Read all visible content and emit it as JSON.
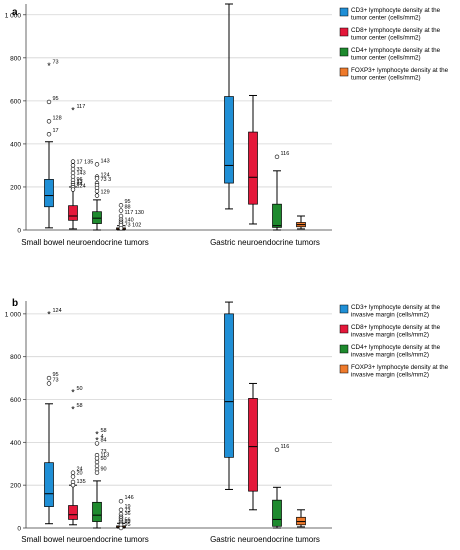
{
  "chart_data": [
    {
      "type": "box",
      "panel_label": "a",
      "categories": [
        "Small bowel neuroendocrine tumors",
        "Gastric neuroendocrine tumors"
      ],
      "ylim": [
        0,
        1050
      ],
      "yticks": [
        0,
        200,
        400,
        600,
        800,
        1000
      ],
      "ytick_labels": [
        "0",
        "200",
        "400",
        "600",
        "800",
        "1 000"
      ],
      "grid": true,
      "legend_position": "right",
      "series": [
        {
          "name": "CD3+ lymphocyte density at the tumor center (cells/mm2)",
          "color": "#1f8fd6",
          "boxes": [
            {
              "min": 10,
              "q1": 108,
              "median": 160,
              "q3": 235,
              "max": 410,
              "outliers": [
                {
                  "value": 765,
                  "label": "73",
                  "marker": "star"
                },
                {
                  "value": 595,
                  "label": "95",
                  "marker": "circle"
                },
                {
                  "value": 505,
                  "label": "128",
                  "marker": "circle"
                },
                {
                  "value": 445,
                  "label": "17",
                  "marker": "circle"
                }
              ]
            },
            {
              "min": 98,
              "q1": 218,
              "median": 300,
              "q3": 620,
              "max": 1050,
              "outliers": []
            }
          ]
        },
        {
          "name": "CD8+ lymphocyte density at the tumor center (cells/mm2)",
          "color": "#e4183a",
          "boxes": [
            {
              "min": 5,
              "q1": 45,
              "median": 65,
              "q3": 113,
              "max": 200,
              "outliers": [
                {
                  "value": 558,
                  "label": "117",
                  "marker": "star"
                },
                {
                  "value": 318,
                  "label": "",
                  "marker": "circle"
                },
                {
                  "value": 300,
                  "label": "17 135",
                  "marker": "circle"
                },
                {
                  "value": 283,
                  "label": "",
                  "marker": "circle"
                },
                {
                  "value": 265,
                  "label": "33",
                  "marker": "circle"
                },
                {
                  "value": 248,
                  "label": "143",
                  "marker": "circle"
                },
                {
                  "value": 232,
                  "label": "",
                  "marker": "circle"
                },
                {
                  "value": 218,
                  "label": "96",
                  "marker": "circle"
                },
                {
                  "value": 208,
                  "label": "13",
                  "marker": "circle"
                },
                {
                  "value": 198,
                  "label": "84",
                  "marker": "circle"
                },
                {
                  "value": 188,
                  "label": "124",
                  "marker": "circle"
                }
              ]
            },
            {
              "min": 28,
              "q1": 120,
              "median": 245,
              "q3": 455,
              "max": 625,
              "outliers": []
            }
          ]
        },
        {
          "name": "CD4+ lymphocyte density at the tumor center (cells/mm2)",
          "color": "#1e8a2e",
          "boxes": [
            {
              "min": 0,
              "q1": 30,
              "median": 55,
              "q3": 85,
              "max": 140,
              "outliers": [
                {
                  "value": 305,
                  "label": "143",
                  "marker": "circle"
                },
                {
                  "value": 248,
                  "label": "",
                  "marker": "circle"
                },
                {
                  "value": 240,
                  "label": "124",
                  "marker": "circle"
                },
                {
                  "value": 218,
                  "label": "73 3",
                  "marker": "circle"
                },
                {
                  "value": 208,
                  "label": "",
                  "marker": "circle"
                },
                {
                  "value": 195,
                  "label": "",
                  "marker": "circle"
                },
                {
                  "value": 180,
                  "label": "",
                  "marker": "circle"
                },
                {
                  "value": 160,
                  "label": "129",
                  "marker": "circle"
                }
              ]
            },
            {
              "min": 0,
              "q1": 12,
              "median": 20,
              "q3": 120,
              "max": 275,
              "outliers": [
                {
                  "value": 340,
                  "label": "116",
                  "marker": "circle"
                }
              ]
            }
          ]
        },
        {
          "name": "FOXP3+ lymphocyte density at the tumor center (cells/mm2)",
          "color": "#ee7a2c",
          "boxes": [
            {
              "min": 0,
              "q1": 2,
              "median": 5,
              "q3": 10,
              "max": 20,
              "outliers": [
                {
                  "value": 115,
                  "label": "95",
                  "marker": "circle"
                },
                {
                  "value": 90,
                  "label": "88",
                  "marker": "circle"
                },
                {
                  "value": 65,
                  "label": "117 130",
                  "marker": "circle"
                },
                {
                  "value": 48,
                  "label": "",
                  "marker": "circle"
                },
                {
                  "value": 38,
                  "label": "",
                  "marker": "circle"
                },
                {
                  "value": 30,
                  "label": "140",
                  "marker": "circle"
                },
                {
                  "value": 22,
                  "label": "",
                  "marker": "circle"
                },
                {
                  "value": 8,
                  "label": "73 102",
                  "marker": "circle"
                }
              ]
            },
            {
              "min": 5,
              "q1": 15,
              "median": 25,
              "q3": 35,
              "max": 65,
              "outliers": []
            }
          ]
        }
      ]
    },
    {
      "type": "box",
      "panel_label": "b",
      "categories": [
        "Small bowel neuroendocrine tumors",
        "Gastric neuroendocrine tumors"
      ],
      "ylim": [
        0,
        1060
      ],
      "yticks": [
        0,
        200,
        400,
        600,
        800,
        1000
      ],
      "ytick_labels": [
        "0",
        "200",
        "400",
        "600",
        "800",
        "1 000"
      ],
      "grid": true,
      "legend_position": "right",
      "series": [
        {
          "name": "CD3+ lymphocyte density at the invasive margin (cells/mm2)",
          "color": "#1f8fd6",
          "boxes": [
            {
              "min": 20,
              "q1": 100,
              "median": 160,
              "q3": 305,
              "max": 580,
              "outliers": [
                {
                  "value": 1000,
                  "label": "124",
                  "marker": "star"
                },
                {
                  "value": 700,
                  "label": "95",
                  "marker": "circle"
                },
                {
                  "value": 675,
                  "label": "73",
                  "marker": "circle"
                }
              ]
            },
            {
              "min": 180,
              "q1": 330,
              "median": 590,
              "q3": 1000,
              "max": 1055,
              "outliers": []
            }
          ]
        },
        {
          "name": "CD8+ lymphocyte density at the invasive margin (cells/mm2)",
          "color": "#e4183a",
          "boxes": [
            {
              "min": 15,
              "q1": 40,
              "median": 62,
              "q3": 105,
              "max": 200,
              "outliers": [
                {
                  "value": 635,
                  "label": "50",
                  "marker": "star"
                },
                {
                  "value": 555,
                  "label": "58",
                  "marker": "star"
                },
                {
                  "value": 258,
                  "label": "24",
                  "marker": "circle"
                },
                {
                  "value": 240,
                  "label": "20",
                  "marker": "circle"
                },
                {
                  "value": 215,
                  "label": "",
                  "marker": "circle"
                },
                {
                  "value": 200,
                  "label": "135",
                  "marker": "circle"
                }
              ]
            },
            {
              "min": 85,
              "q1": 172,
              "median": 380,
              "q3": 605,
              "max": 675,
              "outliers": []
            }
          ]
        },
        {
          "name": "CD4+ lymphocyte density at the invasive margin (cells/mm2)",
          "color": "#1e8a2e",
          "boxes": [
            {
              "min": 0,
              "q1": 30,
              "median": 60,
              "q3": 120,
              "max": 220,
              "outliers": [
                {
                  "value": 440,
                  "label": "58",
                  "marker": "star"
                },
                {
                  "value": 412,
                  "label": "4",
                  "marker": "star"
                },
                {
                  "value": 395,
                  "label": "84",
                  "marker": "circle"
                },
                {
                  "value": 340,
                  "label": "73",
                  "marker": "circle"
                },
                {
                  "value": 325,
                  "label": "113",
                  "marker": "circle"
                },
                {
                  "value": 308,
                  "label": "50",
                  "marker": "circle"
                },
                {
                  "value": 290,
                  "label": "",
                  "marker": "circle"
                },
                {
                  "value": 272,
                  "label": "",
                  "marker": "circle"
                },
                {
                  "value": 258,
                  "label": "90",
                  "marker": "circle"
                }
              ]
            },
            {
              "min": 0,
              "q1": 8,
              "median": 40,
              "q3": 130,
              "max": 190,
              "outliers": [
                {
                  "value": 365,
                  "label": "116",
                  "marker": "circle"
                }
              ]
            }
          ]
        },
        {
          "name": "FOXP3+ lymphocyte density at the invasive margin (cells/mm2)",
          "color": "#ee7a2c",
          "boxes": [
            {
              "min": 0,
              "q1": 2,
              "median": 5,
              "q3": 10,
              "max": 22,
              "outliers": [
                {
                  "value": 125,
                  "label": "146",
                  "marker": "circle"
                },
                {
                  "value": 85,
                  "label": "19",
                  "marker": "circle"
                },
                {
                  "value": 65,
                  "label": "73",
                  "marker": "circle"
                },
                {
                  "value": 52,
                  "label": "36",
                  "marker": "circle"
                },
                {
                  "value": 44,
                  "label": "",
                  "marker": "circle"
                },
                {
                  "value": 35,
                  "label": "",
                  "marker": "circle"
                },
                {
                  "value": 28,
                  "label": "",
                  "marker": "circle"
                },
                {
                  "value": 20,
                  "label": "56",
                  "marker": "circle"
                },
                {
                  "value": 15,
                  "label": "83",
                  "marker": "circle"
                },
                {
                  "value": 0,
                  "label": "95",
                  "marker": "circle"
                }
              ]
            },
            {
              "min": 5,
              "q1": 15,
              "median": 30,
              "q3": 50,
              "max": 85,
              "outliers": []
            }
          ]
        }
      ]
    }
  ]
}
